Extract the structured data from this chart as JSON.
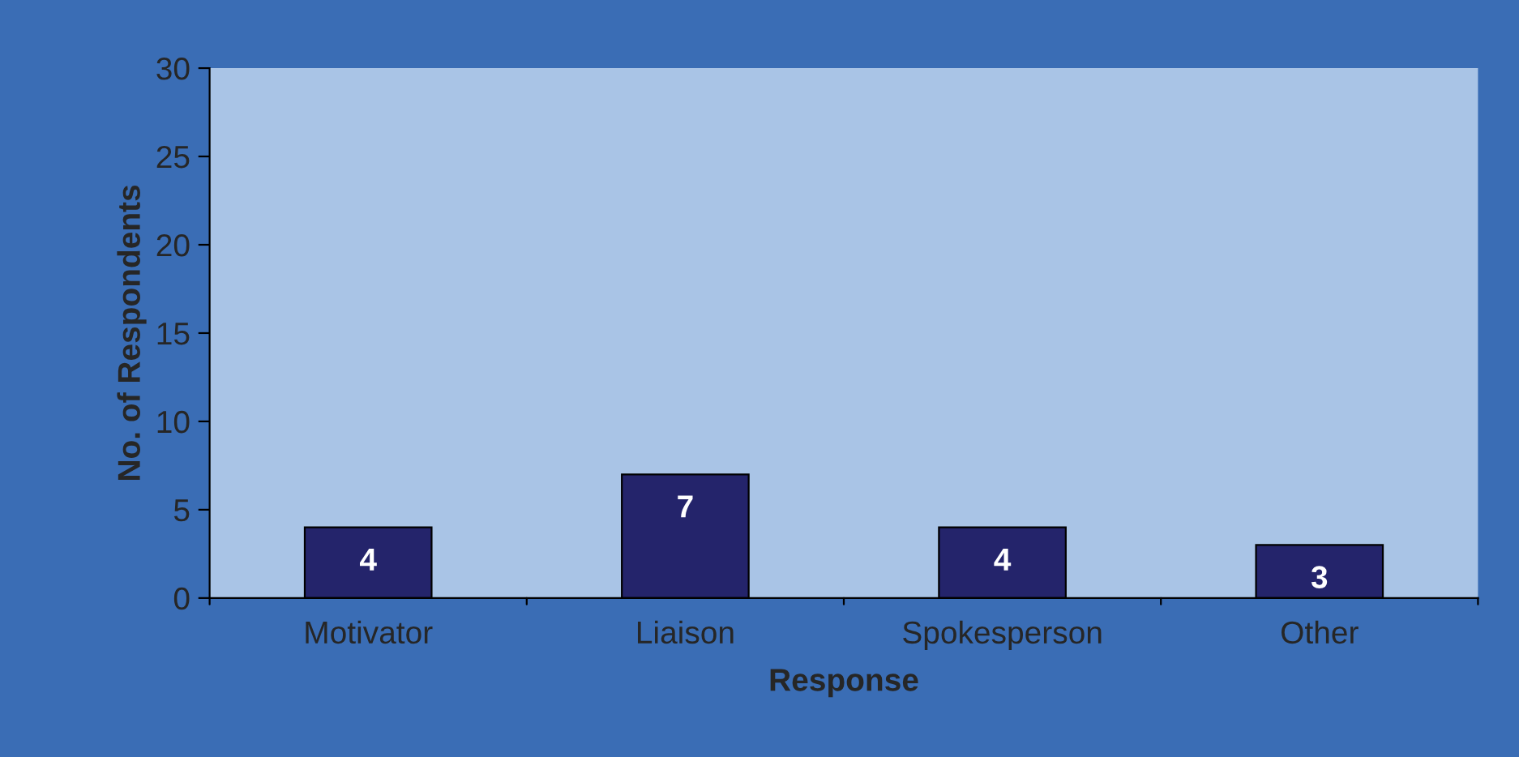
{
  "chart_data": {
    "type": "bar",
    "xlabel": "Response",
    "ylabel": "No. of Respondents",
    "categories": [
      "Motivator",
      "Liaison",
      "Spokesperson",
      "Other"
    ],
    "values": [
      4,
      7,
      4,
      3
    ],
    "color": "#24246b",
    "ylim": [
      0,
      30
    ],
    "yticks": [
      0,
      5,
      10,
      15,
      20,
      25,
      30
    ],
    "data_labels": true,
    "grid": false
  }
}
